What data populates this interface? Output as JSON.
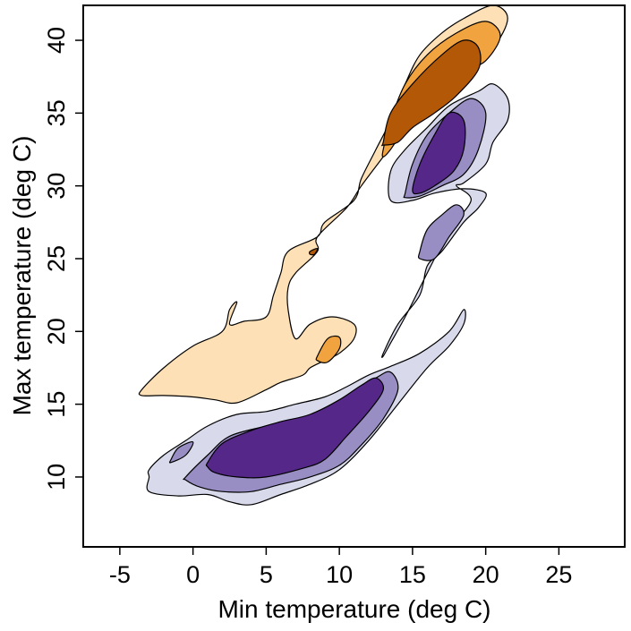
{
  "chart_data": {
    "type": "contour",
    "xlabel": "Min temperature (deg C)",
    "ylabel": "Max temperature (deg C)",
    "xlim": [
      -7.5,
      29.5
    ],
    "ylim": [
      5.2,
      42.4
    ],
    "x_ticks": [
      -5,
      0,
      5,
      10,
      15,
      20,
      25
    ],
    "y_ticks": [
      10,
      15,
      20,
      25,
      30,
      35,
      40
    ],
    "x_tick_labels": [
      "-5",
      "0",
      "5",
      "10",
      "15",
      "20",
      "25"
    ],
    "y_tick_labels": [
      "10",
      "15",
      "20",
      "25",
      "30",
      "35",
      "40"
    ],
    "grid": false,
    "legend": "none",
    "groups": [
      {
        "palette": "orange",
        "levels": [
          {
            "level": 1,
            "color": "#FEE0B6",
            "regions": [
              [
                [
                  -3.5,
                  16
                ],
                [
                  -2,
                  17.5
                ],
                [
                  0,
                  19
                ],
                [
                  2,
                  20
                ],
                [
                  2.5,
                  21.5
                ],
                [
                  3,
                  22
                ],
                [
                  2.5,
                  20.5
                ],
                [
                  3.5,
                  20.7
                ],
                [
                  5,
                  21
                ],
                [
                  5.5,
                  22.5
                ],
                [
                  6,
                  24
                ],
                [
                  6.5,
                  25.5
                ],
                [
                  8.5,
                  26.5
                ],
                [
                  9,
                  27.5
                ],
                [
                  11,
                  29
                ],
                [
                  11.5,
                  30.5
                ],
                [
                  12.5,
                  32.5
                ],
                [
                  13.5,
                  34.5
                ],
                [
                  14.5,
                  37
                ],
                [
                  15.5,
                  39
                ],
                [
                  17,
                  40.5
                ],
                [
                  18.5,
                  41.5
                ],
                [
                  20.5,
                  42.4
                ],
                [
                  21.5,
                  41.5
                ],
                [
                  20.5,
                  39.5
                ],
                [
                  18.5,
                  38
                ],
                [
                  16.5,
                  36
                ],
                [
                  14.5,
                  34
                ],
                [
                  13,
                  32
                ],
                [
                  11.5,
                  30
                ],
                [
                  10.5,
                  28.5
                ],
                [
                  8.5,
                  26.5
                ],
                [
                  8.5,
                  25.5
                ],
                [
                  7,
                  24
                ],
                [
                  6.5,
                  23
                ],
                [
                  6.5,
                  21.5
                ],
                [
                  7,
                  19.5
                ],
                [
                  8,
                  20.5
                ],
                [
                  9.5,
                  21
                ],
                [
                  11,
                  20.5
                ],
                [
                  11,
                  19.5
                ],
                [
                  10,
                  18.5
                ],
                [
                  9,
                  18
                ],
                [
                  8,
                  17.5
                ],
                [
                  7.5,
                  17
                ],
                [
                  6,
                  16.5
                ],
                [
                  5,
                  16
                ],
                [
                  3,
                  15.1
                ],
                [
                  1.5,
                  15.3
                ],
                [
                  0,
                  15.5
                ],
                [
                  -2,
                  15.6
                ],
                [
                  -3.5,
                  15.6
                ]
              ]
            ]
          },
          {
            "level": 2,
            "color": "#F1A340",
            "regions": [
              [
                [
                  13,
                  32.5
                ],
                [
                  13.5,
                  34.5
                ],
                [
                  14.5,
                  37
                ],
                [
                  16,
                  39
                ],
                [
                  18,
                  40.5
                ],
                [
                  20,
                  41.3
                ],
                [
                  21,
                  40.3
                ],
                [
                  20,
                  38.6
                ],
                [
                  18.5,
                  37.8
                ],
                [
                  17,
                  36.2
                ],
                [
                  15.5,
                  35
                ],
                [
                  14.5,
                  34
                ],
                [
                  13.5,
                  32.5
                ],
                [
                  13,
                  32
                ]
              ],
              [
                [
                  8.5,
                  18.3
                ],
                [
                  9.2,
                  19.5
                ],
                [
                  10,
                  19.6
                ],
                [
                  10,
                  18.8
                ],
                [
                  9.2,
                  17.9
                ],
                [
                  8.5,
                  18
                ]
              ]
            ]
          },
          {
            "level": 3,
            "color": "#B35806",
            "regions": [
              [
                [
                  13,
                  33
                ],
                [
                  13.5,
                  35
                ],
                [
                  15,
                  37
                ],
                [
                  17,
                  39
                ],
                [
                  18.5,
                  40
                ],
                [
                  19.5,
                  39.5
                ],
                [
                  19.5,
                  38
                ],
                [
                  18,
                  36.2
                ],
                [
                  16.5,
                  35
                ],
                [
                  15,
                  34
                ],
                [
                  14,
                  33
                ],
                [
                  13,
                  32.8
                ]
              ],
              [
                [
                  8,
                  25.5
                ],
                [
                  8.5,
                  25.7
                ],
                [
                  8.3,
                  25.3
                ],
                [
                  8,
                  25.3
                ]
              ]
            ]
          }
        ]
      },
      {
        "palette": "purple",
        "levels": [
          {
            "level": 1,
            "color": "#D8DAEB",
            "regions": [
              [
                [
                  -3,
                  10.5
                ],
                [
                  -2,
                  11.5
                ],
                [
                  -0.5,
                  12.5
                ],
                [
                  1,
                  13.5
                ],
                [
                  3,
                  14.3
                ],
                [
                  5,
                  14.5
                ],
                [
                  7,
                  15
                ],
                [
                  9,
                  15.5
                ],
                [
                  10.5,
                  16.2
                ],
                [
                  12,
                  17
                ],
                [
                  13.5,
                  17.6
                ],
                [
                  15.5,
                  18.5
                ],
                [
                  17.5,
                  20
                ],
                [
                  18.5,
                  21.5
                ],
                [
                  18.5,
                  20.5
                ],
                [
                  17.5,
                  19
                ],
                [
                  16,
                  17.5
                ],
                [
                  14,
                  15
                ],
                [
                  12,
                  12.5
                ],
                [
                  10,
                  10.5
                ],
                [
                  8,
                  9.5
                ],
                [
                  6,
                  8.8
                ],
                [
                  4,
                  8.1
                ],
                [
                  2.5,
                  8.3
                ],
                [
                  1,
                  8.8
                ],
                [
                  -1,
                  8.7
                ],
                [
                  -3,
                  9
                ],
                [
                  -3,
                  10
                ]
              ],
              [
                [
                  13,
                  18.5
                ],
                [
                  14,
                  20.5
                ],
                [
                  15.5,
                  22.5
                ],
                [
                  16,
                  24.5
                ],
                [
                  17,
                  25.5
                ],
                [
                  18.5,
                  27.5
                ],
                [
                  19.5,
                  28.5
                ],
                [
                  20,
                  29.5
                ],
                [
                  18.5,
                  29.8
                ],
                [
                  16.5,
                  29.5
                ],
                [
                  15,
                  29
                ],
                [
                  13.5,
                  29
                ],
                [
                  13.5,
                  31
                ],
                [
                  14.5,
                  32.5
                ],
                [
                  16,
                  34
                ],
                [
                  17.5,
                  35.5
                ],
                [
                  19.5,
                  36.5
                ],
                [
                  20.5,
                  37
                ],
                [
                  21.5,
                  36
                ],
                [
                  21.5,
                  34.5
                ],
                [
                  20.5,
                  33
                ],
                [
                  20,
                  31.5
                ],
                [
                  18.5,
                  30.2
                ],
                [
                  18,
                  30
                ],
                [
                  19,
                  29
                ],
                [
                  17.5,
                  27
                ],
                [
                  16.5,
                  25
                ],
                [
                  15.5,
                  23
                ],
                [
                  14.5,
                  21
                ],
                [
                  13.5,
                  19.2
                ],
                [
                  13,
                  18.3
                ]
              ]
            ]
          },
          {
            "level": 2,
            "color": "#998EC3",
            "regions": [
              [
                [
                  -1.5,
                  11.2
                ],
                [
                  -1,
                  12
                ],
                [
                  0,
                  12.4
                ],
                [
                  -0.5,
                  11.5
                ],
                [
                  -1.5,
                  11
                ]
              ],
              [
                [
                  -0.5,
                  10
                ],
                [
                  1,
                  11.5
                ],
                [
                  2.5,
                  12.8
                ],
                [
                  5,
                  13.5
                ],
                [
                  7,
                  14
                ],
                [
                  9,
                  14.5
                ],
                [
                  10.5,
                  15.5
                ],
                [
                  12.5,
                  16.8
                ],
                [
                  13.5,
                  17.2
                ],
                [
                  14,
                  16
                ],
                [
                  13,
                  14
                ],
                [
                  11.5,
                  12.2
                ],
                [
                  10,
                  10.8
                ],
                [
                  8,
                  10
                ],
                [
                  6,
                  9.5
                ],
                [
                  4,
                  9
                ],
                [
                  2,
                  9
                ],
                [
                  0.5,
                  9.3
                ],
                [
                  -0.5,
                  9.8
                ]
              ],
              [
                [
                  14.5,
                  29.5
                ],
                [
                  15,
                  31.5
                ],
                [
                  16,
                  33.5
                ],
                [
                  17.5,
                  35
                ],
                [
                  19,
                  36
                ],
                [
                  20,
                  35
                ],
                [
                  19.5,
                  32.5
                ],
                [
                  18.5,
                  30.8
                ],
                [
                  17,
                  30
                ],
                [
                  15.5,
                  29.3
                ],
                [
                  14.5,
                  29.2
                ]
              ],
              [
                [
                  15.5,
                  25.5
                ],
                [
                  16,
                  27
                ],
                [
                  17,
                  28
                ],
                [
                  18,
                  28.7
                ],
                [
                  18.5,
                  28
                ],
                [
                  17.5,
                  26.5
                ],
                [
                  16.5,
                  25
                ],
                [
                  15.5,
                  25
                ]
              ]
            ]
          },
          {
            "level": 3,
            "color": "#542788",
            "regions": [
              [
                [
                  1,
                  11
                ],
                [
                  2,
                  12.3
                ],
                [
                  4,
                  13.2
                ],
                [
                  6,
                  13.8
                ],
                [
                  8,
                  14.3
                ],
                [
                  10,
                  15.3
                ],
                [
                  11.5,
                  16.3
                ],
                [
                  12.5,
                  16.8
                ],
                [
                  13,
                  16
                ],
                [
                  12,
                  14.5
                ],
                [
                  10.5,
                  12.8
                ],
                [
                  9,
                  11.2
                ],
                [
                  7.5,
                  10.6
                ],
                [
                  5,
                  10
                ],
                [
                  3,
                  10
                ],
                [
                  1.5,
                  10.3
                ],
                [
                  1,
                  10.7
                ]
              ],
              [
                [
                  15,
                  29.7
                ],
                [
                  15.5,
                  31.5
                ],
                [
                  16.5,
                  33.5
                ],
                [
                  17.5,
                  35
                ],
                [
                  18.5,
                  34.5
                ],
                [
                  18.5,
                  32.5
                ],
                [
                  17.8,
                  31
                ],
                [
                  16.5,
                  30
                ],
                [
                  15.5,
                  29.5
                ]
              ]
            ]
          }
        ]
      }
    ]
  }
}
